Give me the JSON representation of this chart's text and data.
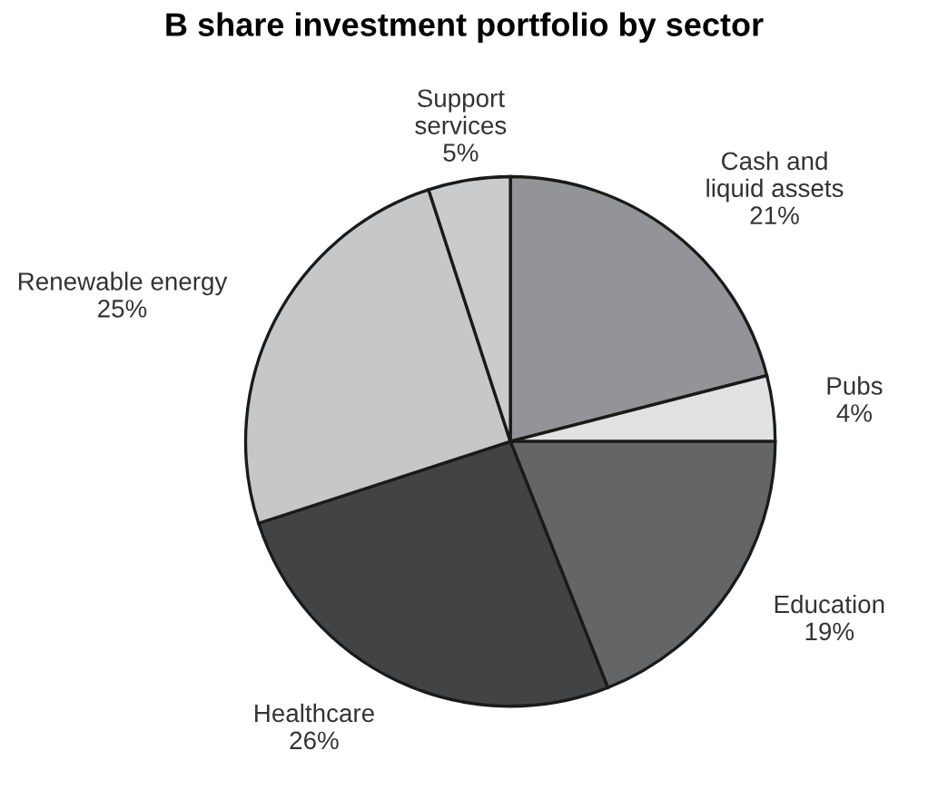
{
  "chart_data": {
    "type": "pie",
    "title": "B share investment portfolio by sector",
    "categories": [
      "Cash and\nliquid assets",
      "Pubs",
      "Education",
      "Healthcare",
      "Renewable energy",
      "Support\nservices"
    ],
    "values": [
      21,
      4,
      19,
      26,
      25,
      5
    ],
    "value_labels": [
      "21%",
      "4%",
      "19%",
      "26%",
      "25%",
      "5%"
    ],
    "colors": [
      "#929497",
      "#e1e2e3",
      "#646567",
      "#424345",
      "#c6c7c9",
      "#cacbcd"
    ]
  }
}
